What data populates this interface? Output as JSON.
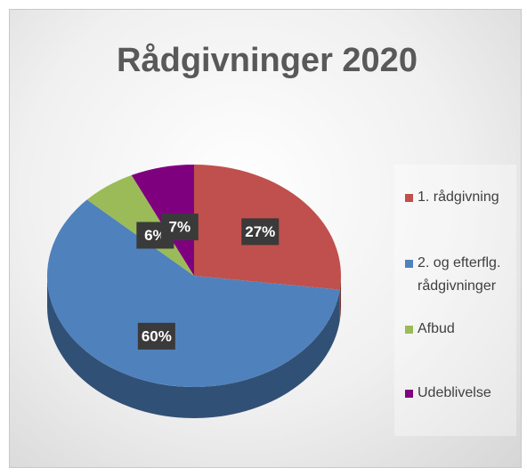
{
  "chart_data": {
    "type": "pie",
    "title": "Rådgivninger 2020",
    "categories": [
      "1. rådgivning",
      "2. og efterflg. rådgivninger",
      "Afbud",
      "Udeblivelse"
    ],
    "values": [
      27,
      60,
      6,
      7
    ],
    "value_labels": [
      "27%",
      "60%",
      "6%",
      "7%"
    ],
    "colors": [
      "#c0504d",
      "#4f81bd",
      "#9bbb59",
      "#7f007f"
    ],
    "legend": "right"
  }
}
